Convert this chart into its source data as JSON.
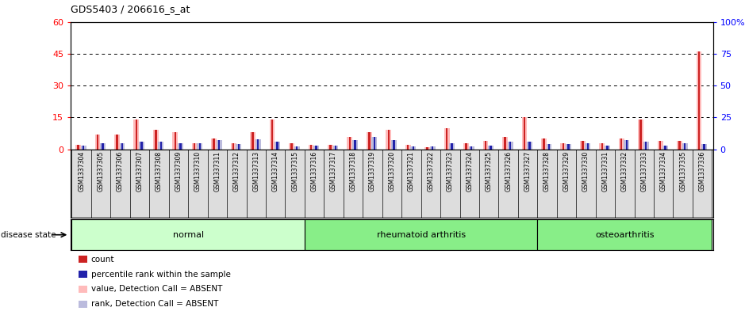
{
  "title": "GDS5403 / 206616_s_at",
  "samples": [
    "GSM1337304",
    "GSM1337305",
    "GSM1337306",
    "GSM1337307",
    "GSM1337308",
    "GSM1337309",
    "GSM1337310",
    "GSM1337311",
    "GSM1337312",
    "GSM1337313",
    "GSM1337314",
    "GSM1337315",
    "GSM1337316",
    "GSM1337317",
    "GSM1337318",
    "GSM1337319",
    "GSM1337320",
    "GSM1337321",
    "GSM1337322",
    "GSM1337323",
    "GSM1337324",
    "GSM1337325",
    "GSM1337326",
    "GSM1337327",
    "GSM1337328",
    "GSM1337329",
    "GSM1337330",
    "GSM1337331",
    "GSM1337332",
    "GSM1337333",
    "GSM1337334",
    "GSM1337335",
    "GSM1337336"
  ],
  "absent_count": [
    2,
    7,
    7,
    14,
    9,
    8,
    3,
    5,
    3,
    8,
    14,
    3,
    2,
    2,
    6,
    8,
    9,
    2,
    1,
    10,
    3,
    4,
    6,
    15,
    5,
    3,
    4,
    3,
    5,
    14,
    4,
    4,
    46
  ],
  "count_val": [
    2,
    7,
    7,
    14,
    9,
    8,
    3,
    5,
    3,
    8,
    14,
    3,
    2,
    2,
    6,
    8,
    9,
    2,
    1,
    10,
    3,
    4,
    6,
    15,
    5,
    3,
    4,
    3,
    5,
    14,
    4,
    4,
    46
  ],
  "absent_rank": [
    3,
    5,
    5,
    6,
    6,
    5,
    5,
    7,
    4,
    8,
    6,
    2,
    3,
    3,
    7,
    10,
    7,
    2,
    2,
    5,
    2,
    3,
    6,
    6,
    4,
    4,
    5,
    3,
    7,
    6,
    3,
    5,
    4
  ],
  "rank_val": [
    3,
    5,
    5,
    6,
    6,
    5,
    5,
    7,
    4,
    8,
    6,
    2,
    3,
    3,
    7,
    10,
    7,
    2,
    2,
    5,
    2,
    3,
    6,
    6,
    4,
    4,
    5,
    3,
    7,
    6,
    3,
    5,
    4
  ],
  "groups": [
    {
      "label": "normal",
      "start": 0,
      "end": 12
    },
    {
      "label": "rheumatoid arthritis",
      "start": 12,
      "end": 24
    },
    {
      "label": "osteoarthritis",
      "start": 24,
      "end": 33
    }
  ],
  "ylim_left": [
    0,
    60
  ],
  "ylim_right": [
    0,
    100
  ],
  "yticks_left": [
    0,
    15,
    30,
    45,
    60
  ],
  "yticks_right": [
    0,
    25,
    50,
    75,
    100
  ],
  "color_count": "#cc2222",
  "color_rank": "#2222aa",
  "color_absent_count": "#ffbbbb",
  "color_absent_rank": "#bbbbdd",
  "group_color_normal": "#ccffcc",
  "group_color_rheum": "#88ee88",
  "group_color_osteo": "#88ee88",
  "tick_label_bg": "#dddddd",
  "bg_color": "#ffffff",
  "plot_bg": "#ffffff"
}
